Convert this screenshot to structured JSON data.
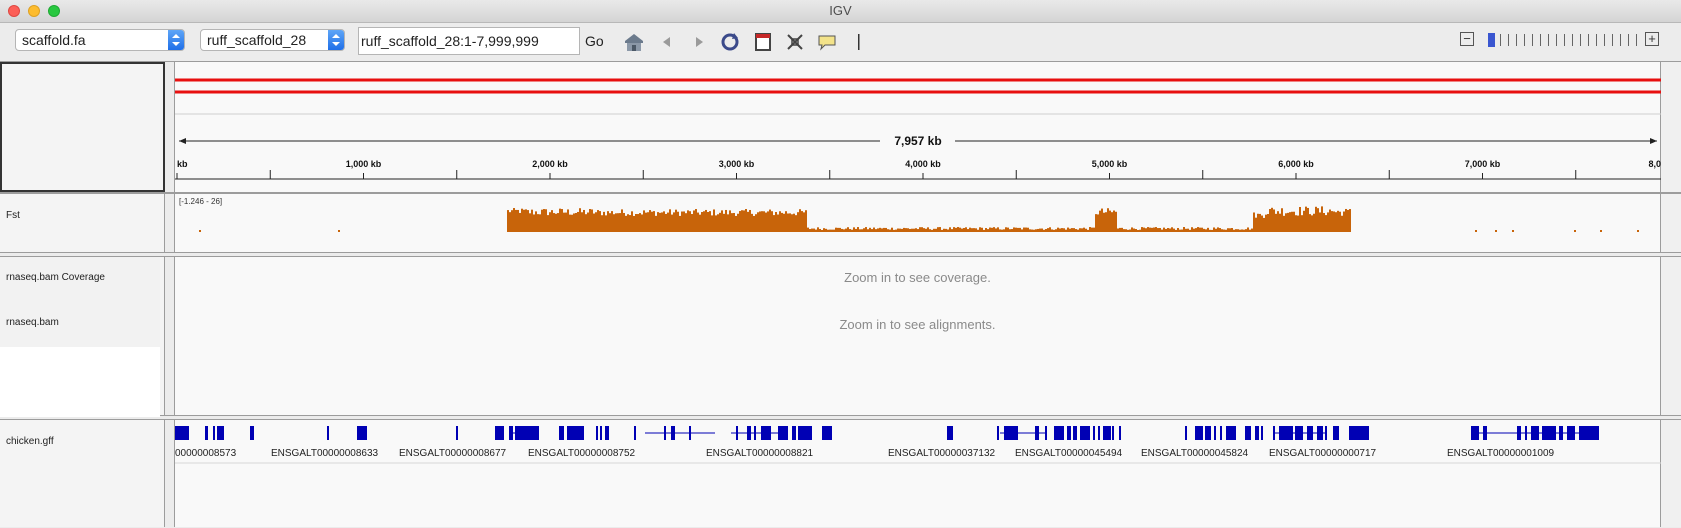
{
  "window": {
    "title": "IGV"
  },
  "toolbar": {
    "genome": "scaffold.fa",
    "chromosome": "ruff_scaffold_28",
    "locus": "ruff_scaffold_28:1-7,999,999",
    "go_label": "Go",
    "icons": [
      "home-icon",
      "back-icon",
      "forward-icon",
      "refresh-icon",
      "region-icon",
      "resize-icon",
      "popup-icon",
      "ruler-icon"
    ]
  },
  "ruler": {
    "span_label": "7,957 kb",
    "tick_labels": [
      "kb",
      "1,000 kb",
      "2,000 kb",
      "3,000 kb",
      "4,000 kb",
      "5,000 kb",
      "6,000 kb",
      "7,000 kb",
      "8,0"
    ]
  },
  "tracks": {
    "fst": {
      "name": "Fst",
      "range": "[-1.246 - 26]",
      "color": "#c8640a"
    },
    "coverage": {
      "name": "rnaseq.bam Coverage",
      "message": "Zoom in to see coverage."
    },
    "alignments": {
      "name": "rnaseq.bam",
      "message": "Zoom in to see alignments."
    },
    "gff": {
      "name": "chicken.gff",
      "color": "#0000b4",
      "labels": [
        "00000008573",
        "ENSGALT00000008633",
        "ENSGALT00000008677",
        "ENSGALT00000008752",
        "ENSGALT00000008821",
        "ENSGALT00000037132",
        "ENSGALT00000045494",
        "ENSGALT00000045824",
        "ENSGALT00000000717",
        "ENSGALT00000001009"
      ]
    }
  }
}
